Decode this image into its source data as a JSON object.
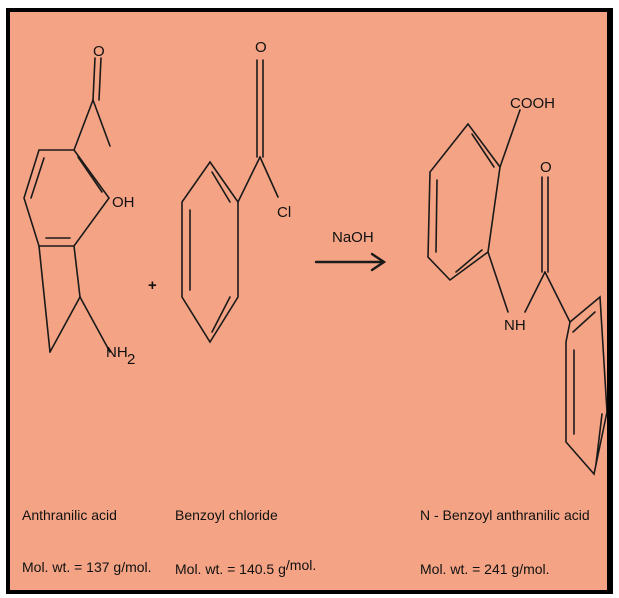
{
  "colors": {
    "background": "#f4a485",
    "frame": "#000000",
    "ink": "#1a1a1a"
  },
  "reagent": "NaOH",
  "plus": "+",
  "atoms": {
    "anthranilic_O": "O",
    "anthranilic_OH": "OH",
    "anthranilic_NH": "NH",
    "anthranilic_sub2": "2",
    "benzoyl_O": "O",
    "benzoyl_Cl": "Cl",
    "product_COOH": "COOH",
    "product_O": "O",
    "product_NH": "NH"
  },
  "compounds": [
    {
      "name": "Anthranilic acid",
      "mw_prefix": "Mol. wt. = 137 g",
      "mw_suffix": "/mol."
    },
    {
      "name": "Benzoyl chloride",
      "mw_prefix": "Mol. wt. = 140.5 g",
      "mw_suffix": "/mol."
    },
    {
      "name": "N - Benzoyl anthranilic acid",
      "mw_prefix": "Mol. wt. = 241 g",
      "mw_suffix": "/mol."
    }
  ]
}
